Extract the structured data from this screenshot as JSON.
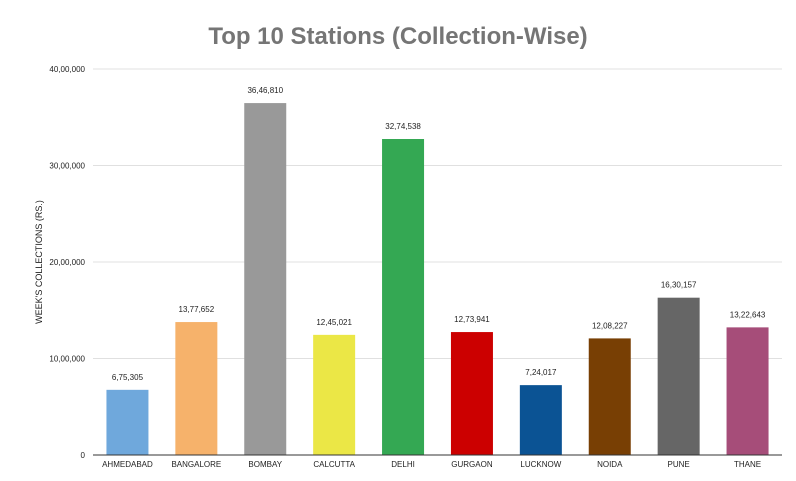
{
  "chart_data": {
    "type": "bar",
    "title": "Top 10 Stations (Collection-Wise)",
    "xlabel": "",
    "ylabel": "WEEK'S COLLECTIONS (RS.)",
    "ylim": [
      0,
      4000000
    ],
    "yticks": [
      0,
      1000000,
      2000000,
      3000000,
      4000000
    ],
    "ytick_labels": [
      "0",
      "10,00,000",
      "20,00,000",
      "30,00,000",
      "40,00,000"
    ],
    "grid": true,
    "legend": "none",
    "categories": [
      "AHMEDABAD",
      "BANGALORE",
      "BOMBAY",
      "CALCUTTA",
      "DELHI",
      "GURGAON",
      "LUCKNOW",
      "NOIDA",
      "PUNE",
      "THANE"
    ],
    "values": [
      675305,
      1377652,
      3646810,
      1245021,
      3274538,
      1273941,
      724017,
      1208227,
      1630157,
      1322643
    ],
    "value_labels": [
      "6,75,305",
      "13,77,652",
      "36,46,810",
      "12,45,021",
      "32,74,538",
      "12,73,941",
      "7,24,017",
      "12,08,227",
      "16,30,157",
      "13,22,643"
    ],
    "colors": [
      "#6fa8dc",
      "#f6b26b",
      "#999999",
      "#ebe746",
      "#34a853",
      "#cc0000",
      "#0b5394",
      "#783f04",
      "#666666",
      "#a64d79"
    ]
  }
}
